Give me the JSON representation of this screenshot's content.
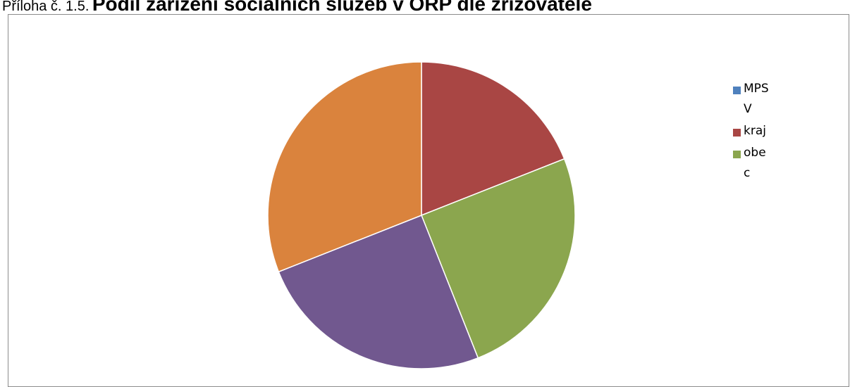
{
  "caption": {
    "prefix": "Příloha č. 1.5.",
    "title": "Podíl zařízení sociálních služeb v ORP dle zřizovatele"
  },
  "chart_data": {
    "type": "pie",
    "categories": [
      "MPSV",
      "kraj",
      "obec",
      "",
      ""
    ],
    "values": [
      0,
      19,
      25,
      25,
      31
    ],
    "colors": [
      "#4f81bd",
      "#a94644",
      "#8ba64e",
      "#71588f",
      "#da833d"
    ],
    "legend": {
      "placement": "right",
      "entries": [
        "MPSV",
        "kraj",
        "obec"
      ]
    }
  }
}
